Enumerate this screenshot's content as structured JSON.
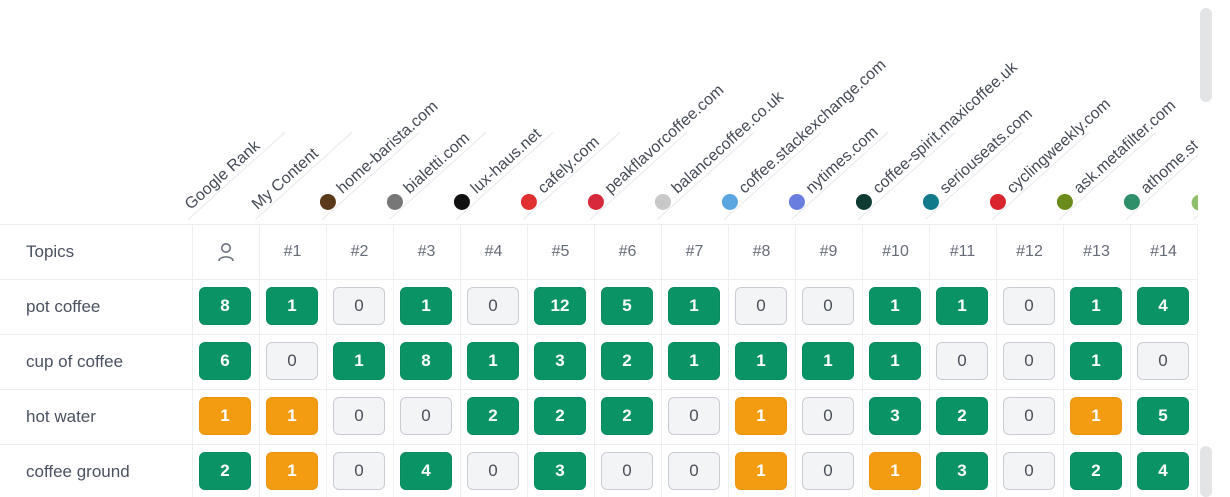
{
  "header": {
    "columns": [
      {
        "label": "Google Rank",
        "icon": "",
        "color": ""
      },
      {
        "label": "My Content",
        "icon": "",
        "color": ""
      },
      {
        "label": "home-barista.com",
        "icon": "home-barista-favicon",
        "color": "#5a3a1a"
      },
      {
        "label": "bialetti.com",
        "icon": "bialetti-favicon",
        "color": "#777777"
      },
      {
        "label": "lux-haus.net",
        "icon": "lux-haus-favicon",
        "color": "#111111"
      },
      {
        "label": "cafely.com",
        "icon": "cafely-favicon",
        "color": "#e03030"
      },
      {
        "label": "peakflavorcoffee.com",
        "icon": "peakflavor-favicon",
        "color": "#d62a3c"
      },
      {
        "label": "balancecoffee.co.uk",
        "icon": "balancecoffee-favicon",
        "color": "#c8c8c8"
      },
      {
        "label": "coffee.stackexchange.com",
        "icon": "stackexchange-favicon",
        "color": "#5aa6e0"
      },
      {
        "label": "nytimes.com",
        "icon": "nytimes-favicon",
        "color": "#6a7ee0"
      },
      {
        "label": "coffee-spirit.maxicoffee.uk",
        "icon": "maxicoffee-favicon",
        "color": "#0f3b34"
      },
      {
        "label": "seriouseats.com",
        "icon": "seriouseats-favicon",
        "color": "#117a8a"
      },
      {
        "label": "cyclingweekly.com",
        "icon": "cyclingweekly-favicon",
        "color": "#d9232d"
      },
      {
        "label": "ask.metafilter.com",
        "icon": "metafilter-favicon",
        "color": "#6a8a1a"
      },
      {
        "label": "athome.st",
        "icon": "athome-favicon",
        "color": "#2f8f6a"
      },
      {
        "label": "",
        "icon": "extra-favicon",
        "color": "#8fbf6a"
      }
    ]
  },
  "table": {
    "topics_header": "Topics",
    "google_rank_icon": "user-icon",
    "ranks": [
      "#1",
      "#2",
      "#3",
      "#4",
      "#5",
      "#6",
      "#7",
      "#8",
      "#9",
      "#10",
      "#11",
      "#12",
      "#13",
      "#14"
    ],
    "rows": [
      {
        "topic": "pot coffee",
        "cells": [
          {
            "v": "8",
            "s": "green"
          },
          {
            "v": "1",
            "s": "green"
          },
          {
            "v": "0",
            "s": "zero"
          },
          {
            "v": "1",
            "s": "green"
          },
          {
            "v": "0",
            "s": "zero"
          },
          {
            "v": "12",
            "s": "green"
          },
          {
            "v": "5",
            "s": "green"
          },
          {
            "v": "1",
            "s": "green"
          },
          {
            "v": "0",
            "s": "zero"
          },
          {
            "v": "0",
            "s": "zero"
          },
          {
            "v": "1",
            "s": "green"
          },
          {
            "v": "1",
            "s": "green"
          },
          {
            "v": "0",
            "s": "zero"
          },
          {
            "v": "1",
            "s": "green"
          },
          {
            "v": "4",
            "s": "green"
          }
        ]
      },
      {
        "topic": "cup of coffee",
        "cells": [
          {
            "v": "6",
            "s": "green"
          },
          {
            "v": "0",
            "s": "zero"
          },
          {
            "v": "1",
            "s": "green"
          },
          {
            "v": "8",
            "s": "green"
          },
          {
            "v": "1",
            "s": "green"
          },
          {
            "v": "3",
            "s": "green"
          },
          {
            "v": "2",
            "s": "green"
          },
          {
            "v": "1",
            "s": "green"
          },
          {
            "v": "1",
            "s": "green"
          },
          {
            "v": "1",
            "s": "green"
          },
          {
            "v": "1",
            "s": "green"
          },
          {
            "v": "0",
            "s": "zero"
          },
          {
            "v": "0",
            "s": "zero"
          },
          {
            "v": "1",
            "s": "green"
          },
          {
            "v": "0",
            "s": "zero"
          }
        ]
      },
      {
        "topic": "hot water",
        "cells": [
          {
            "v": "1",
            "s": "orange"
          },
          {
            "v": "1",
            "s": "orange"
          },
          {
            "v": "0",
            "s": "zero"
          },
          {
            "v": "0",
            "s": "zero"
          },
          {
            "v": "2",
            "s": "green"
          },
          {
            "v": "2",
            "s": "green"
          },
          {
            "v": "2",
            "s": "green"
          },
          {
            "v": "0",
            "s": "zero"
          },
          {
            "v": "1",
            "s": "orange"
          },
          {
            "v": "0",
            "s": "zero"
          },
          {
            "v": "3",
            "s": "green"
          },
          {
            "v": "2",
            "s": "green"
          },
          {
            "v": "0",
            "s": "zero"
          },
          {
            "v": "1",
            "s": "orange"
          },
          {
            "v": "5",
            "s": "green"
          }
        ]
      },
      {
        "topic": "coffee ground",
        "cells": [
          {
            "v": "2",
            "s": "green"
          },
          {
            "v": "1",
            "s": "orange"
          },
          {
            "v": "0",
            "s": "zero"
          },
          {
            "v": "4",
            "s": "green"
          },
          {
            "v": "0",
            "s": "zero"
          },
          {
            "v": "3",
            "s": "green"
          },
          {
            "v": "0",
            "s": "zero"
          },
          {
            "v": "0",
            "s": "zero"
          },
          {
            "v": "1",
            "s": "orange"
          },
          {
            "v": "0",
            "s": "zero"
          },
          {
            "v": "1",
            "s": "orange"
          },
          {
            "v": "3",
            "s": "green"
          },
          {
            "v": "0",
            "s": "zero"
          },
          {
            "v": "2",
            "s": "green"
          },
          {
            "v": "4",
            "s": "green"
          }
        ]
      }
    ]
  },
  "colors": {
    "green": "#0a9466",
    "orange": "#f39c12",
    "zero_bg": "#f3f4f6"
  }
}
